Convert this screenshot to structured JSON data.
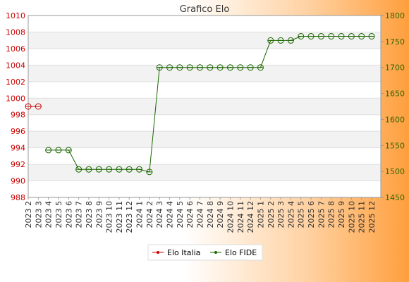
{
  "chart_data": {
    "type": "line",
    "title": "Grafico Elo",
    "xlabel": "",
    "ylabel": "",
    "categories": [
      "2023 2",
      "2023 3",
      "2023 4",
      "2023 5",
      "2023 6",
      "2023 7",
      "2023 8",
      "2023 9",
      "2023 10",
      "2023 11",
      "2023 12",
      "2024 1",
      "2024 2",
      "2024 3",
      "2024 4",
      "2024 5",
      "2024 6",
      "2024 7",
      "2024 8",
      "2024 9",
      "2024 10",
      "2024 11",
      "2024 12",
      "2025 1",
      "2025 2",
      "2025 3",
      "2025 4",
      "2025 5",
      "2025 6",
      "2025 7",
      "2025 8",
      "2025 9",
      "2025 10",
      "2025 11",
      "2025 12"
    ],
    "left_axis": {
      "ylim": [
        988,
        1010
      ],
      "ticks": [
        "988",
        "990",
        "992",
        "994",
        "996",
        "998",
        "1000",
        "1002",
        "1004",
        "1006",
        "1008",
        "1010"
      ],
      "color": "#cc0000"
    },
    "right_axis": {
      "ylim": [
        1450,
        1800
      ],
      "ticks": [
        "1450",
        "1500",
        "1550",
        "1600",
        "1650",
        "1700",
        "1750",
        "1800"
      ],
      "color": "#336600"
    },
    "series": [
      {
        "name": "Elo Italia",
        "axis": "left",
        "color": "#cc0000",
        "values": [
          999,
          999,
          null,
          null,
          null,
          null,
          null,
          null,
          null,
          null,
          null,
          null,
          null,
          null,
          null,
          null,
          null,
          null,
          null,
          null,
          null,
          null,
          null,
          null,
          null,
          null,
          null,
          null,
          null,
          null,
          null,
          null,
          null,
          null,
          null
        ]
      },
      {
        "name": "Elo FIDE",
        "axis": "right",
        "color": "#1a6600",
        "values": [
          null,
          null,
          1541,
          1541,
          1541,
          1504,
          1504,
          1504,
          1504,
          1504,
          1504,
          1504,
          1499,
          1700,
          1700,
          1700,
          1700,
          1700,
          1700,
          1700,
          1700,
          1700,
          1700,
          1700,
          1752,
          1752,
          1752,
          1760,
          1760,
          1760,
          1760,
          1760,
          1760,
          1760,
          1760
        ]
      }
    ],
    "grid": true,
    "legend": "bottom-center"
  }
}
